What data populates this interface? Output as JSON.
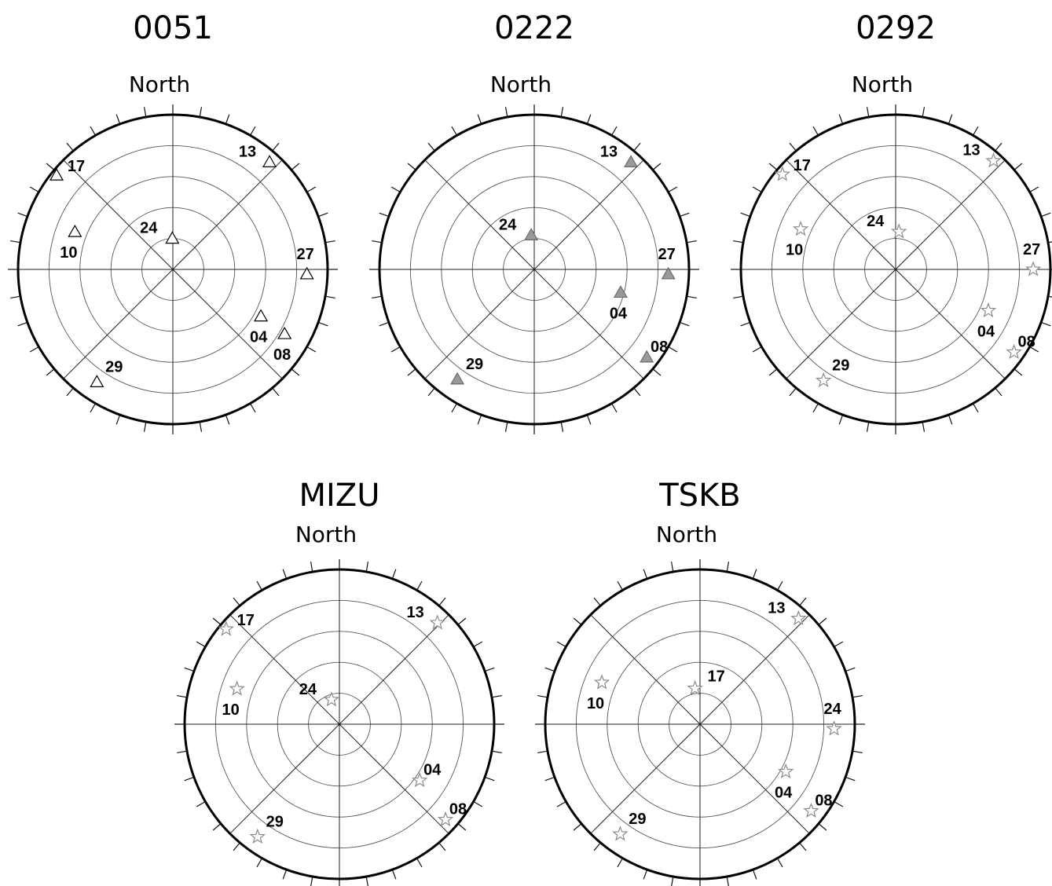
{
  "chart_data": [
    {
      "type": "polar",
      "title": "0051",
      "north_label": "North",
      "marker": "triangle",
      "marker_fill": "#ffffff",
      "marker_stroke": "#000000",
      "elevation_lim": [
        0,
        90
      ],
      "elevation_rings": [
        18,
        36,
        54,
        72
      ],
      "azimuth_ticks": [
        0,
        10,
        20,
        30,
        40,
        50,
        60,
        70,
        80,
        90,
        100,
        110,
        120,
        130,
        140,
        150,
        160,
        170,
        180,
        190,
        200,
        210,
        220,
        230,
        240,
        250,
        260,
        270,
        280,
        290,
        300,
        310,
        320,
        330,
        340,
        350
      ],
      "points": [
        {
          "label": "17",
          "azimuth": 309,
          "elevation": 3
        },
        {
          "label": "13",
          "azimuth": 42,
          "elevation": 6
        },
        {
          "label": "24",
          "azimuth": 359,
          "elevation": 72
        },
        {
          "label": "10",
          "azimuth": 291,
          "elevation": 29
        },
        {
          "label": "27",
          "azimuth": 92,
          "elevation": 12
        },
        {
          "label": "04",
          "azimuth": 118,
          "elevation": 32
        },
        {
          "label": "08",
          "azimuth": 120,
          "elevation": 15
        },
        {
          "label": "29",
          "azimuth": 214,
          "elevation": 11
        }
      ]
    },
    {
      "type": "polar",
      "title": "0222",
      "north_label": "North",
      "marker": "triangle",
      "marker_fill": "#9a9a9a",
      "marker_stroke": "#6a6a6a",
      "elevation_lim": [
        0,
        90
      ],
      "elevation_rings": [
        18,
        36,
        54,
        72
      ],
      "azimuth_ticks": [
        0,
        10,
        20,
        30,
        40,
        50,
        60,
        70,
        80,
        90,
        100,
        110,
        120,
        130,
        140,
        150,
        160,
        170,
        180,
        190,
        200,
        210,
        220,
        230,
        240,
        250,
        260,
        270,
        280,
        290,
        300,
        310,
        320,
        330,
        340,
        350
      ],
      "points": [
        {
          "label": "13",
          "azimuth": 42,
          "elevation": 6
        },
        {
          "label": "24",
          "azimuth": 355,
          "elevation": 70
        },
        {
          "label": "27",
          "azimuth": 92,
          "elevation": 12
        },
        {
          "label": "04",
          "azimuth": 105,
          "elevation": 38
        },
        {
          "label": "08",
          "azimuth": 128,
          "elevation": 7
        },
        {
          "label": "29",
          "azimuth": 215,
          "elevation": 12
        }
      ]
    },
    {
      "type": "polar",
      "title": "0292",
      "north_label": "North",
      "marker": "star",
      "marker_fill": "#ffffff",
      "marker_stroke": "#8a8a8a",
      "elevation_lim": [
        0,
        90
      ],
      "elevation_rings": [
        18,
        36,
        54,
        72
      ],
      "azimuth_ticks": [
        0,
        10,
        20,
        30,
        40,
        50,
        60,
        70,
        80,
        90,
        100,
        110,
        120,
        130,
        140,
        150,
        160,
        170,
        180,
        190,
        200,
        210,
        220,
        230,
        240,
        250,
        260,
        270,
        280,
        290,
        300,
        310,
        320,
        330,
        340,
        350
      ],
      "points": [
        {
          "label": "17",
          "azimuth": 310,
          "elevation": 4
        },
        {
          "label": "13",
          "azimuth": 42,
          "elevation": 5
        },
        {
          "label": "24",
          "azimuth": 5,
          "elevation": 68
        },
        {
          "label": "10",
          "azimuth": 293,
          "elevation": 30
        },
        {
          "label": "27",
          "azimuth": 90,
          "elevation": 10
        },
        {
          "label": "04",
          "azimuth": 114,
          "elevation": 31
        },
        {
          "label": "08",
          "azimuth": 125,
          "elevation": 6
        },
        {
          "label": "29",
          "azimuth": 213,
          "elevation": 13
        }
      ]
    },
    {
      "type": "polar",
      "title": "MIZU",
      "north_label": "North",
      "marker": "star",
      "marker_fill": "#ffffff",
      "marker_stroke": "#8a8a8a",
      "elevation_lim": [
        0,
        90
      ],
      "elevation_rings": [
        18,
        36,
        54,
        72
      ],
      "azimuth_ticks": [
        0,
        10,
        20,
        30,
        40,
        50,
        60,
        70,
        80,
        90,
        100,
        110,
        120,
        130,
        140,
        150,
        160,
        170,
        180,
        190,
        200,
        210,
        220,
        230,
        240,
        250,
        260,
        270,
        280,
        290,
        300,
        310,
        320,
        330,
        340,
        350
      ],
      "points": [
        {
          "label": "17",
          "azimuth": 310,
          "elevation": 4
        },
        {
          "label": "13",
          "azimuth": 44,
          "elevation": 8
        },
        {
          "label": "24",
          "azimuth": 342,
          "elevation": 75
        },
        {
          "label": "10",
          "azimuth": 289,
          "elevation": 27
        },
        {
          "label": "04",
          "azimuth": 125,
          "elevation": 33
        },
        {
          "label": "08",
          "azimuth": 132,
          "elevation": 7
        },
        {
          "label": "29",
          "azimuth": 216,
          "elevation": 9
        }
      ]
    },
    {
      "type": "polar",
      "title": "TSKB",
      "north_label": "North",
      "marker": "star",
      "marker_fill": "#ffffff",
      "marker_stroke": "#8a8a8a",
      "elevation_lim": [
        0,
        90
      ],
      "elevation_rings": [
        18,
        36,
        54,
        72
      ],
      "azimuth_ticks": [
        0,
        10,
        20,
        30,
        40,
        50,
        60,
        70,
        80,
        90,
        100,
        110,
        120,
        130,
        140,
        150,
        160,
        170,
        180,
        190,
        200,
        210,
        220,
        230,
        240,
        250,
        260,
        270,
        280,
        290,
        300,
        310,
        320,
        330,
        340,
        350
      ],
      "points": [
        {
          "label": "13",
          "azimuth": 43,
          "elevation": 6
        },
        {
          "label": "17",
          "azimuth": 352,
          "elevation": 69
        },
        {
          "label": "10",
          "azimuth": 293,
          "elevation": 28
        },
        {
          "label": "24",
          "azimuth": 92,
          "elevation": 12
        },
        {
          "label": "04",
          "azimuth": 119,
          "elevation": 33
        },
        {
          "label": "08",
          "azimuth": 128,
          "elevation": 8
        },
        {
          "label": "29",
          "azimuth": 216,
          "elevation": 11
        }
      ]
    }
  ]
}
